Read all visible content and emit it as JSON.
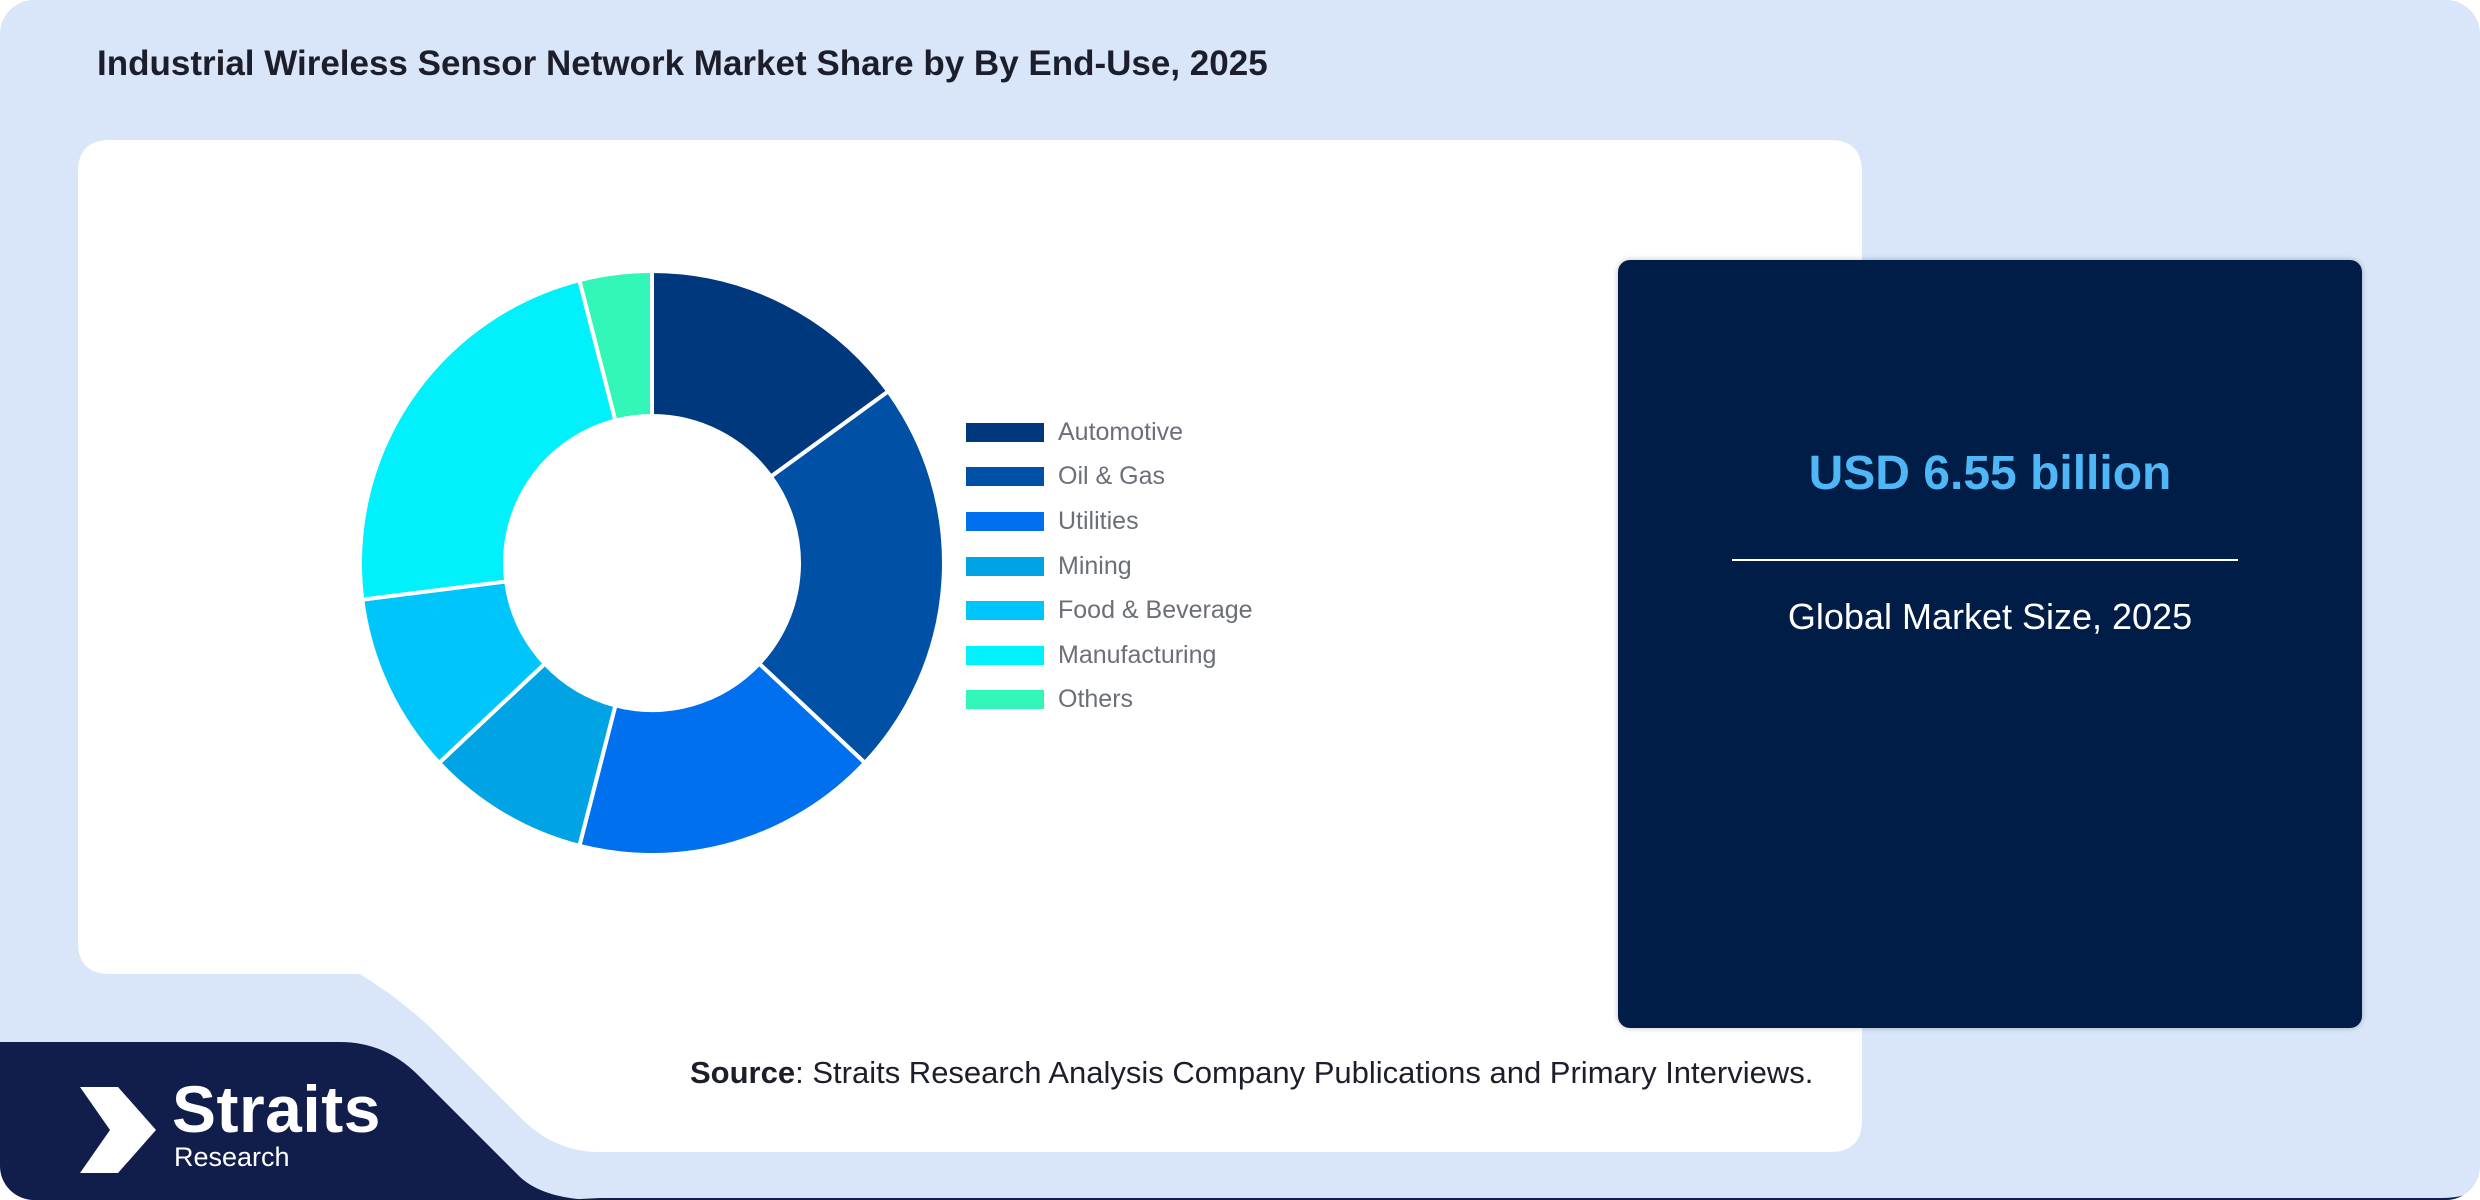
{
  "title": "Industrial Wireless Sensor Network Market Share by By End-Use, 2025",
  "chart_data": {
    "type": "pie",
    "title": "Industrial Wireless Sensor Network Market Share by By End-Use, 2025",
    "categories": [
      "Automotive",
      "Oil & Gas",
      "Utilities",
      "Mining",
      "Food & Beverage",
      "Manufacturing",
      "Others"
    ],
    "values": [
      15,
      22,
      17,
      9,
      10,
      23,
      4
    ],
    "colors": [
      "#00387d",
      "#0050a6",
      "#0070ef",
      "#00a3e3",
      "#00c5fa",
      "#00f1fb",
      "#31f6b7"
    ],
    "legend": "right",
    "hole": "donut"
  },
  "market": {
    "value": "USD 6.55 billion",
    "caption": "Global Market Size, 2025"
  },
  "source": {
    "label": "Source",
    "text": ": Straits Research Analysis Company Publications and Primary Interviews."
  },
  "logo": {
    "name": "Straits",
    "sub": "Research"
  },
  "colors": {
    "background": "#d9e6f9",
    "panel": "#001d47",
    "accent": "#4fb7f6",
    "footer": "#111d4a"
  }
}
